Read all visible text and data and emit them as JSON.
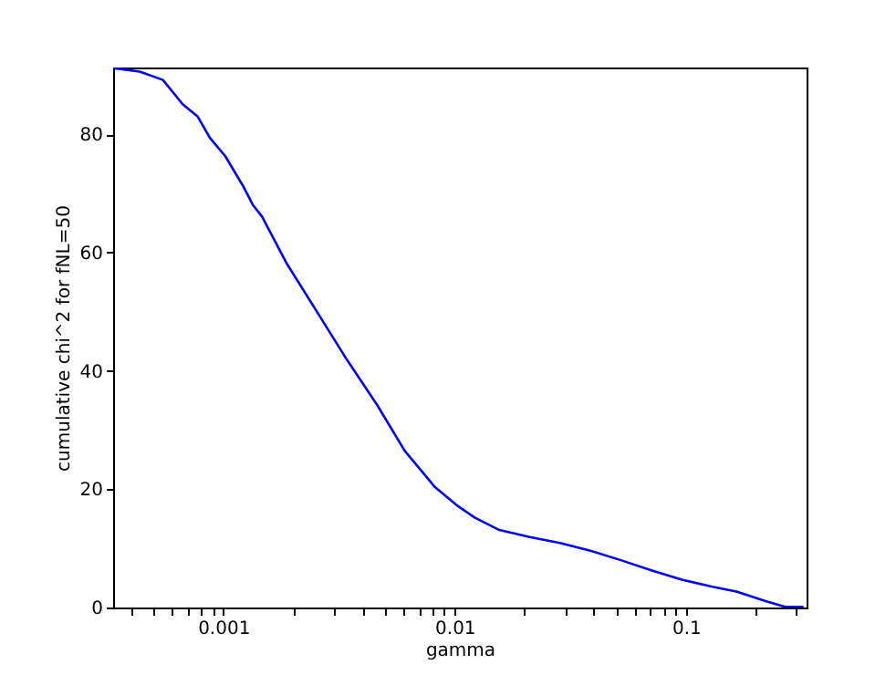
{
  "chart_data": {
    "type": "line",
    "xlabel": "gamma",
    "ylabel": "cumulative chi^2 for fNL=50",
    "log": "x",
    "grid": false,
    "marker": "none",
    "line_style": "solid",
    "xlim": [
      0.000334,
      0.332
    ],
    "ylim": [
      0,
      91.3
    ],
    "xticks": [
      {
        "value": 0.0004,
        "label": null
      },
      {
        "value": 0.0005,
        "label": null
      },
      {
        "value": 0.0006,
        "label": null
      },
      {
        "value": 0.0007,
        "label": null
      },
      {
        "value": 0.0008,
        "label": null
      },
      {
        "value": 0.0009,
        "label": null
      },
      0.001,
      {
        "value": 0.002,
        "label": null
      },
      {
        "value": 0.003,
        "label": null
      },
      {
        "value": 0.004,
        "label": null
      },
      {
        "value": 0.005,
        "label": null
      },
      {
        "value": 0.006,
        "label": null
      },
      {
        "value": 0.007,
        "label": null
      },
      {
        "value": 0.008,
        "label": null
      },
      {
        "value": 0.009,
        "label": null
      },
      0.01,
      {
        "value": 0.02,
        "label": null
      },
      {
        "value": 0.03,
        "label": null
      },
      {
        "value": 0.04,
        "label": null
      },
      {
        "value": 0.05,
        "label": null
      },
      {
        "value": 0.06,
        "label": null
      },
      {
        "value": 0.07,
        "label": null
      },
      {
        "value": 0.08,
        "label": null
      },
      {
        "value": 0.09,
        "label": null
      },
      0.1,
      {
        "value": 0.2,
        "label": null
      },
      {
        "value": 0.3,
        "label": null
      }
    ],
    "yticks": [
      0,
      20,
      40,
      60,
      80
    ],
    "series": [
      {
        "color": "#0000ff",
        "x": [
          0.000334,
          0.000435,
          0.000548,
          0.000667,
          0.000775,
          0.000875,
          0.00102,
          0.00122,
          0.00134,
          0.00147,
          0.00187,
          0.00253,
          0.00342,
          0.00463,
          0.00608,
          0.00824,
          0.0102,
          0.0122,
          0.0156,
          0.0211,
          0.0285,
          0.0386,
          0.0523,
          0.0708,
          0.0959,
          0.13,
          0.165,
          0.224,
          0.268,
          0.322
        ],
        "values": [
          91.2,
          90.6,
          89.2,
          85.1,
          83.0,
          79.4,
          76.3,
          71.2,
          68.1,
          66.1,
          58.3,
          50.1,
          41.9,
          34.2,
          26.5,
          20.3,
          17.3,
          15.2,
          13.1,
          11.9,
          10.9,
          9.6,
          8.0,
          6.3,
          4.7,
          3.5,
          2.7,
          1.0,
          0.1,
          0.1
        ]
      }
    ]
  }
}
